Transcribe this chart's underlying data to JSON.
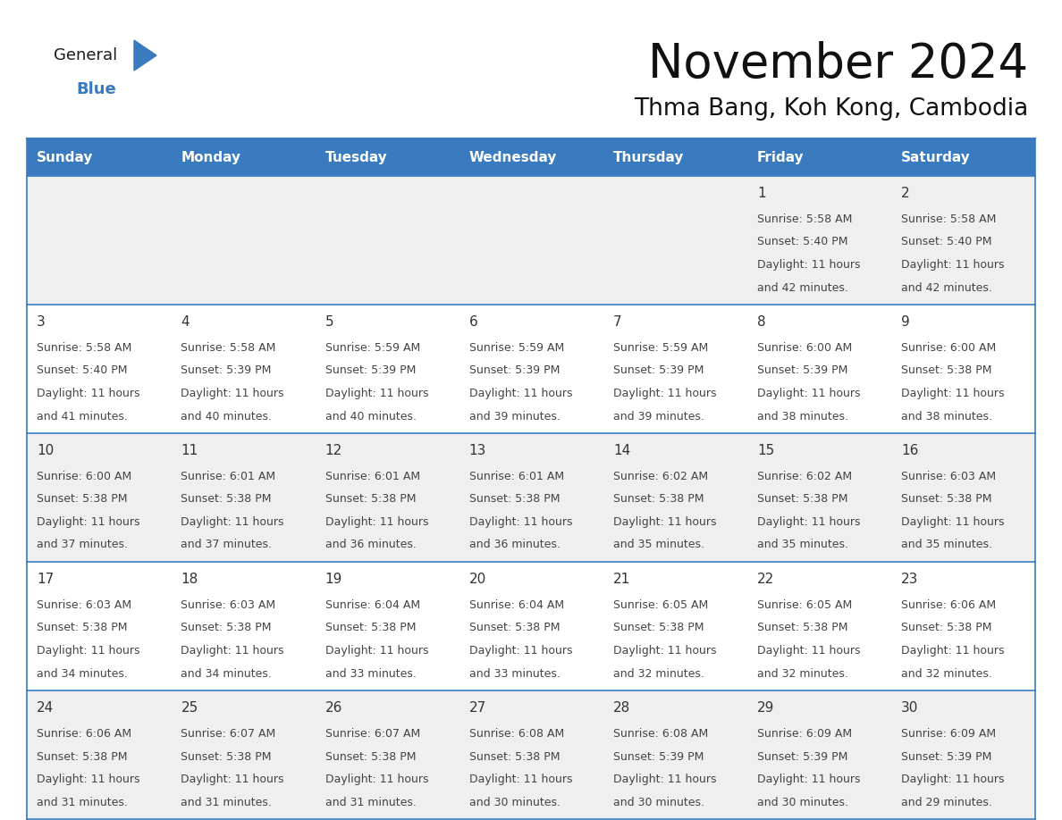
{
  "title": "November 2024",
  "subtitle": "Thma Bang, Koh Kong, Cambodia",
  "days_of_week": [
    "Sunday",
    "Monday",
    "Tuesday",
    "Wednesday",
    "Thursday",
    "Friday",
    "Saturday"
  ],
  "header_bg": "#3a7bbf",
  "header_text": "#ffffff",
  "row_bg_colors": [
    "#efefef",
    "#ffffff",
    "#efefef",
    "#ffffff",
    "#efefef"
  ],
  "cell_text_color": "#444444",
  "day_num_color": "#333333",
  "border_color": "#3a7bbf",
  "title_color": "#111111",
  "subtitle_color": "#111111",
  "calendar_data": [
    [
      {
        "day": null
      },
      {
        "day": null
      },
      {
        "day": null
      },
      {
        "day": null
      },
      {
        "day": null
      },
      {
        "day": 1,
        "sunrise": "5:58 AM",
        "sunset": "5:40 PM",
        "daylight": "11 hours and 42 minutes."
      },
      {
        "day": 2,
        "sunrise": "5:58 AM",
        "sunset": "5:40 PM",
        "daylight": "11 hours and 42 minutes."
      }
    ],
    [
      {
        "day": 3,
        "sunrise": "5:58 AM",
        "sunset": "5:40 PM",
        "daylight": "11 hours and 41 minutes."
      },
      {
        "day": 4,
        "sunrise": "5:58 AM",
        "sunset": "5:39 PM",
        "daylight": "11 hours and 40 minutes."
      },
      {
        "day": 5,
        "sunrise": "5:59 AM",
        "sunset": "5:39 PM",
        "daylight": "11 hours and 40 minutes."
      },
      {
        "day": 6,
        "sunrise": "5:59 AM",
        "sunset": "5:39 PM",
        "daylight": "11 hours and 39 minutes."
      },
      {
        "day": 7,
        "sunrise": "5:59 AM",
        "sunset": "5:39 PM",
        "daylight": "11 hours and 39 minutes."
      },
      {
        "day": 8,
        "sunrise": "6:00 AM",
        "sunset": "5:39 PM",
        "daylight": "11 hours and 38 minutes."
      },
      {
        "day": 9,
        "sunrise": "6:00 AM",
        "sunset": "5:38 PM",
        "daylight": "11 hours and 38 minutes."
      }
    ],
    [
      {
        "day": 10,
        "sunrise": "6:00 AM",
        "sunset": "5:38 PM",
        "daylight": "11 hours and 37 minutes."
      },
      {
        "day": 11,
        "sunrise": "6:01 AM",
        "sunset": "5:38 PM",
        "daylight": "11 hours and 37 minutes."
      },
      {
        "day": 12,
        "sunrise": "6:01 AM",
        "sunset": "5:38 PM",
        "daylight": "11 hours and 36 minutes."
      },
      {
        "day": 13,
        "sunrise": "6:01 AM",
        "sunset": "5:38 PM",
        "daylight": "11 hours and 36 minutes."
      },
      {
        "day": 14,
        "sunrise": "6:02 AM",
        "sunset": "5:38 PM",
        "daylight": "11 hours and 35 minutes."
      },
      {
        "day": 15,
        "sunrise": "6:02 AM",
        "sunset": "5:38 PM",
        "daylight": "11 hours and 35 minutes."
      },
      {
        "day": 16,
        "sunrise": "6:03 AM",
        "sunset": "5:38 PM",
        "daylight": "11 hours and 35 minutes."
      }
    ],
    [
      {
        "day": 17,
        "sunrise": "6:03 AM",
        "sunset": "5:38 PM",
        "daylight": "11 hours and 34 minutes."
      },
      {
        "day": 18,
        "sunrise": "6:03 AM",
        "sunset": "5:38 PM",
        "daylight": "11 hours and 34 minutes."
      },
      {
        "day": 19,
        "sunrise": "6:04 AM",
        "sunset": "5:38 PM",
        "daylight": "11 hours and 33 minutes."
      },
      {
        "day": 20,
        "sunrise": "6:04 AM",
        "sunset": "5:38 PM",
        "daylight": "11 hours and 33 minutes."
      },
      {
        "day": 21,
        "sunrise": "6:05 AM",
        "sunset": "5:38 PM",
        "daylight": "11 hours and 32 minutes."
      },
      {
        "day": 22,
        "sunrise": "6:05 AM",
        "sunset": "5:38 PM",
        "daylight": "11 hours and 32 minutes."
      },
      {
        "day": 23,
        "sunrise": "6:06 AM",
        "sunset": "5:38 PM",
        "daylight": "11 hours and 32 minutes."
      }
    ],
    [
      {
        "day": 24,
        "sunrise": "6:06 AM",
        "sunset": "5:38 PM",
        "daylight": "11 hours and 31 minutes."
      },
      {
        "day": 25,
        "sunrise": "6:07 AM",
        "sunset": "5:38 PM",
        "daylight": "11 hours and 31 minutes."
      },
      {
        "day": 26,
        "sunrise": "6:07 AM",
        "sunset": "5:38 PM",
        "daylight": "11 hours and 31 minutes."
      },
      {
        "day": 27,
        "sunrise": "6:08 AM",
        "sunset": "5:38 PM",
        "daylight": "11 hours and 30 minutes."
      },
      {
        "day": 28,
        "sunrise": "6:08 AM",
        "sunset": "5:39 PM",
        "daylight": "11 hours and 30 minutes."
      },
      {
        "day": 29,
        "sunrise": "6:09 AM",
        "sunset": "5:39 PM",
        "daylight": "11 hours and 30 minutes."
      },
      {
        "day": 30,
        "sunrise": "6:09 AM",
        "sunset": "5:39 PM",
        "daylight": "11 hours and 29 minutes."
      }
    ]
  ],
  "logo_text_general": "General",
  "logo_text_blue": "Blue",
  "logo_triangle_color": "#3a7bbf",
  "logo_general_color": "#1a1a1a"
}
